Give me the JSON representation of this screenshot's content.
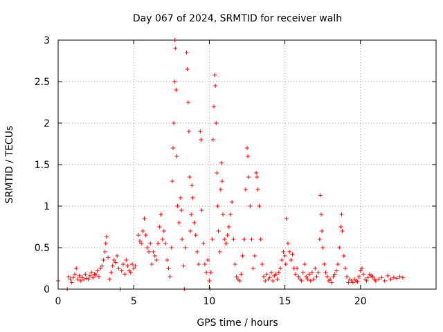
{
  "chart_data": {
    "type": "scatter",
    "title": "Day 067 of 2024, SRMTID for receiver walh",
    "xlabel": "GPS time / hours",
    "ylabel": "SRMTID / TECUs",
    "xlim": [
      0,
      25
    ],
    "ylim": [
      0,
      3
    ],
    "xticks": [
      0,
      5,
      10,
      15,
      20
    ],
    "yticks": [
      0,
      0.5,
      1,
      1.5,
      2,
      2.5,
      3
    ],
    "xtick_labels": [
      "0",
      "5",
      "10",
      "15",
      "20"
    ],
    "ytick_labels": [
      "0",
      "0.5",
      "1",
      "1.5",
      "2",
      "2.5",
      "3"
    ],
    "grid": true,
    "marker": "+",
    "color": "#ff0000",
    "series": [
      {
        "name": "SRMTID",
        "points": [
          [
            0.0,
            0.1
          ],
          [
            0.6,
            0.0
          ],
          [
            0.7,
            0.15
          ],
          [
            0.8,
            0.12
          ],
          [
            0.9,
            0.08
          ],
          [
            1.0,
            0.14
          ],
          [
            1.1,
            0.18
          ],
          [
            1.2,
            0.25
          ],
          [
            1.3,
            0.12
          ],
          [
            1.4,
            0.16
          ],
          [
            1.5,
            0.1
          ],
          [
            1.6,
            0.14
          ],
          [
            1.7,
            0.12
          ],
          [
            1.8,
            0.18
          ],
          [
            1.9,
            0.13
          ],
          [
            2.0,
            0.12
          ],
          [
            2.1,
            0.16
          ],
          [
            2.2,
            0.2
          ],
          [
            2.3,
            0.14
          ],
          [
            2.4,
            0.18
          ],
          [
            2.5,
            0.17
          ],
          [
            2.6,
            0.22
          ],
          [
            2.7,
            0.15
          ],
          [
            2.8,
            0.25
          ],
          [
            2.9,
            0.28
          ],
          [
            3.0,
            0.35
          ],
          [
            3.1,
            0.45
          ],
          [
            3.15,
            0.55
          ],
          [
            3.2,
            0.63
          ],
          [
            3.3,
            0.38
          ],
          [
            3.4,
            0.12
          ],
          [
            3.5,
            0.2
          ],
          [
            3.6,
            0.28
          ],
          [
            3.7,
            0.35
          ],
          [
            3.8,
            0.32
          ],
          [
            3.9,
            0.4
          ],
          [
            4.0,
            0.25
          ],
          [
            4.1,
            0.0
          ],
          [
            4.2,
            0.22
          ],
          [
            4.3,
            0.3
          ],
          [
            4.4,
            0.18
          ],
          [
            4.5,
            0.35
          ],
          [
            4.6,
            0.28
          ],
          [
            4.7,
            0.22
          ],
          [
            4.8,
            0.2
          ],
          [
            4.9,
            0.3
          ],
          [
            5.0,
            0.25
          ],
          [
            5.1,
            0.28
          ],
          [
            5.3,
            0.65
          ],
          [
            5.4,
            0.58
          ],
          [
            5.5,
            0.55
          ],
          [
            5.6,
            0.7
          ],
          [
            5.7,
            0.85
          ],
          [
            5.8,
            0.65
          ],
          [
            5.9,
            0.5
          ],
          [
            6.0,
            0.45
          ],
          [
            6.1,
            0.55
          ],
          [
            6.2,
            0.3
          ],
          [
            6.3,
            0.45
          ],
          [
            6.4,
            0.4
          ],
          [
            6.5,
            0.35
          ],
          [
            6.6,
            0.55
          ],
          [
            6.7,
            0.75
          ],
          [
            6.8,
            0.9
          ],
          [
            6.9,
            0.6
          ],
          [
            7.0,
            0.7
          ],
          [
            7.1,
            0.55
          ],
          [
            7.2,
            0.35
          ],
          [
            7.3,
            0.25
          ],
          [
            7.4,
            0.15
          ],
          [
            7.5,
            0.5
          ],
          [
            7.55,
            1.3
          ],
          [
            7.6,
            1.7
          ],
          [
            7.65,
            2.0
          ],
          [
            7.7,
            2.5
          ],
          [
            7.72,
            3.0
          ],
          [
            7.75,
            2.9
          ],
          [
            7.8,
            2.4
          ],
          [
            7.85,
            1.6
          ],
          [
            7.9,
            1.0
          ],
          [
            8.0,
            0.8
          ],
          [
            8.1,
            1.1
          ],
          [
            8.15,
            0.95
          ],
          [
            8.2,
            0.6
          ],
          [
            8.3,
            0.28
          ],
          [
            8.35,
            0.0
          ],
          [
            8.4,
            0.5
          ],
          [
            8.5,
            2.85
          ],
          [
            8.55,
            2.65
          ],
          [
            8.6,
            2.25
          ],
          [
            8.65,
            1.9
          ],
          [
            8.7,
            1.35
          ],
          [
            8.75,
            0.7
          ],
          [
            8.8,
            0.9
          ],
          [
            8.85,
            1.25
          ],
          [
            8.9,
            1.1
          ],
          [
            9.0,
            0.8
          ],
          [
            9.1,
            0.65
          ],
          [
            9.2,
            0.45
          ],
          [
            9.3,
            0.3
          ],
          [
            9.4,
            1.9
          ],
          [
            9.45,
            1.8
          ],
          [
            9.5,
            0.95
          ],
          [
            9.6,
            0.55
          ],
          [
            9.7,
            0.3
          ],
          [
            9.8,
            0.2
          ],
          [
            9.9,
            0.35
          ],
          [
            10.0,
            0.1
          ],
          [
            10.05,
            0.0
          ],
          [
            10.1,
            0.2
          ],
          [
            10.2,
            0.6
          ],
          [
            10.25,
            1.8
          ],
          [
            10.3,
            2.2
          ],
          [
            10.35,
            2.58
          ],
          [
            10.4,
            2.45
          ],
          [
            10.45,
            2.0
          ],
          [
            10.5,
            1.4
          ],
          [
            10.55,
            1.0
          ],
          [
            10.6,
            0.7
          ],
          [
            10.7,
            0.45
          ],
          [
            10.75,
            1.2
          ],
          [
            10.8,
            1.52
          ],
          [
            10.85,
            1.3
          ],
          [
            10.9,
            0.9
          ],
          [
            11.0,
            0.6
          ],
          [
            11.1,
            0.55
          ],
          [
            11.2,
            0.65
          ],
          [
            11.3,
            0.75
          ],
          [
            11.4,
            0.9
          ],
          [
            11.5,
            1.05
          ],
          [
            11.6,
            0.6
          ],
          [
            11.7,
            0.3
          ],
          [
            11.8,
            0.15
          ],
          [
            11.9,
            0.12
          ],
          [
            12.0,
            0.1
          ],
          [
            12.1,
            0.18
          ],
          [
            12.2,
            0.4
          ],
          [
            12.3,
            0.6
          ],
          [
            12.4,
            1.2
          ],
          [
            12.5,
            1.7
          ],
          [
            12.55,
            1.6
          ],
          [
            12.6,
            1.35
          ],
          [
            12.7,
            1.0
          ],
          [
            12.8,
            0.6
          ],
          [
            12.9,
            0.25
          ],
          [
            13.0,
            0.4
          ],
          [
            13.1,
            1.4
          ],
          [
            13.15,
            1.35
          ],
          [
            13.2,
            1.2
          ],
          [
            13.3,
            1.0
          ],
          [
            13.4,
            0.6
          ],
          [
            13.5,
            0.3
          ],
          [
            13.6,
            0.15
          ],
          [
            13.7,
            0.1
          ],
          [
            13.8,
            0.18
          ],
          [
            13.9,
            0.12
          ],
          [
            14.0,
            0.14
          ],
          [
            14.1,
            0.2
          ],
          [
            14.2,
            0.1
          ],
          [
            14.3,
            0.16
          ],
          [
            14.4,
            0.18
          ],
          [
            14.5,
            0.12
          ],
          [
            14.6,
            0.2
          ],
          [
            14.7,
            0.25
          ],
          [
            14.8,
            0.35
          ],
          [
            14.9,
            0.45
          ],
          [
            15.0,
            0.4
          ],
          [
            15.05,
            0.3
          ],
          [
            15.1,
            0.85
          ],
          [
            15.2,
            0.55
          ],
          [
            15.3,
            0.45
          ],
          [
            15.4,
            0.35
          ],
          [
            15.5,
            0.42
          ],
          [
            15.6,
            0.25
          ],
          [
            15.7,
            0.18
          ],
          [
            15.8,
            0.25
          ],
          [
            15.9,
            0.15
          ],
          [
            16.0,
            0.12
          ],
          [
            16.1,
            0.1
          ],
          [
            16.2,
            0.2
          ],
          [
            16.3,
            0.3
          ],
          [
            16.4,
            0.15
          ],
          [
            16.5,
            0.12
          ],
          [
            16.6,
            0.18
          ],
          [
            16.7,
            0.1
          ],
          [
            16.8,
            0.2
          ],
          [
            16.9,
            0.12
          ],
          [
            17.0,
            0.25
          ],
          [
            17.1,
            0.15
          ],
          [
            17.2,
            0.2
          ],
          [
            17.3,
            0.6
          ],
          [
            17.35,
            1.13
          ],
          [
            17.4,
            0.9
          ],
          [
            17.45,
            0.7
          ],
          [
            17.5,
            0.5
          ],
          [
            17.6,
            0.3
          ],
          [
            17.7,
            0.2
          ],
          [
            17.8,
            0.15
          ],
          [
            17.9,
            0.1
          ],
          [
            18.0,
            0.12
          ],
          [
            18.1,
            0.08
          ],
          [
            18.2,
            0.15
          ],
          [
            18.3,
            0.18
          ],
          [
            18.4,
            0.22
          ],
          [
            18.5,
            0.3
          ],
          [
            18.6,
            0.5
          ],
          [
            18.7,
            0.75
          ],
          [
            18.75,
            0.9
          ],
          [
            18.8,
            0.7
          ],
          [
            18.9,
            0.4
          ],
          [
            19.0,
            0.25
          ],
          [
            19.1,
            0.15
          ],
          [
            19.2,
            0.08
          ],
          [
            19.3,
            0.12
          ],
          [
            19.4,
            0.1
          ],
          [
            19.5,
            0.08
          ],
          [
            19.6,
            0.12
          ],
          [
            19.7,
            0.1
          ],
          [
            19.8,
            0.09
          ],
          [
            19.9,
            0.15
          ],
          [
            20.0,
            0.22
          ],
          [
            20.1,
            0.25
          ],
          [
            20.2,
            0.18
          ],
          [
            20.3,
            0.12
          ],
          [
            20.4,
            0.1
          ],
          [
            20.5,
            0.14
          ],
          [
            20.6,
            0.18
          ],
          [
            20.7,
            0.16
          ],
          [
            20.8,
            0.15
          ],
          [
            20.9,
            0.12
          ],
          [
            21.0,
            0.1
          ],
          [
            21.2,
            0.12
          ],
          [
            21.4,
            0.14
          ],
          [
            21.6,
            0.1
          ],
          [
            21.8,
            0.16
          ],
          [
            22.0,
            0.12
          ],
          [
            22.2,
            0.14
          ],
          [
            22.4,
            0.13
          ],
          [
            22.6,
            0.15
          ],
          [
            22.8,
            0.14
          ]
        ]
      }
    ]
  }
}
